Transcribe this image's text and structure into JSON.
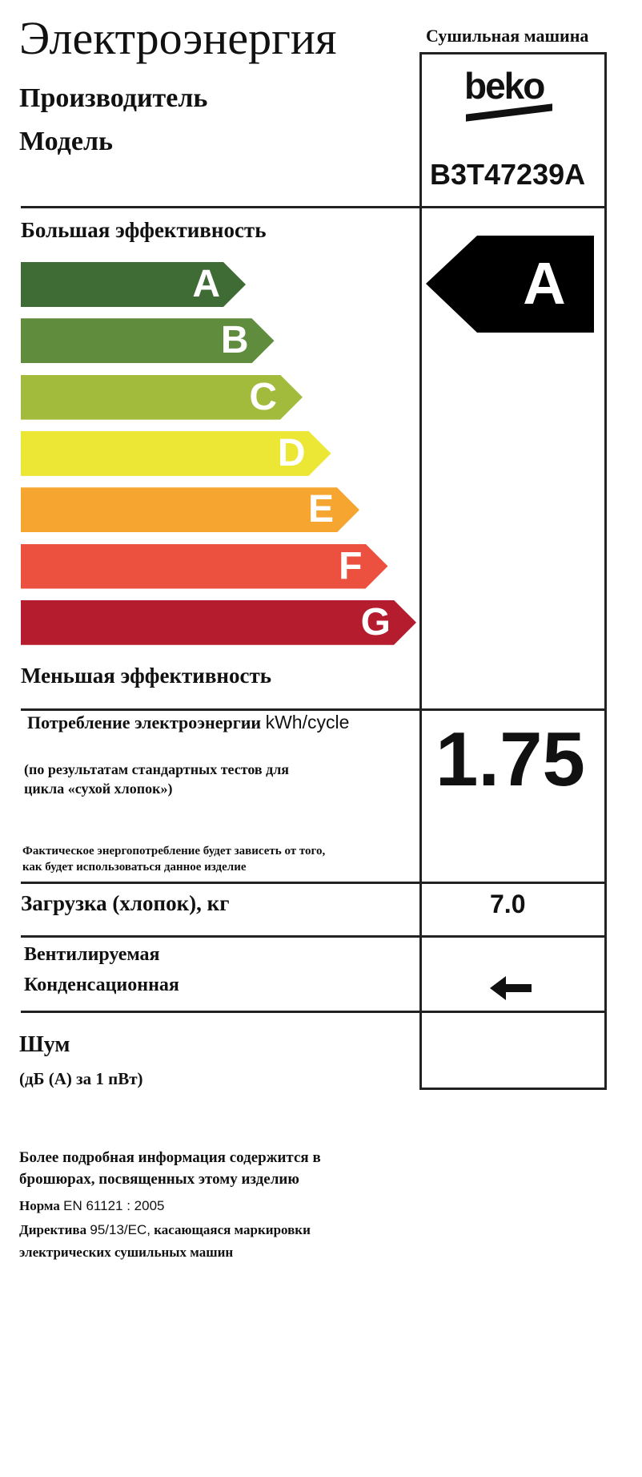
{
  "header": {
    "title": "Электроэнергия",
    "appliance_type": "Сушильная машина",
    "manufacturer_label": "Производитель",
    "model_label": "Модель",
    "manufacturer_logo": "beko",
    "model": "B3T47239A"
  },
  "efficiency": {
    "high_label": "Большая эффективность",
    "low_label": "Меньшая эффективность",
    "classes": [
      {
        "letter": "A",
        "color": "#3f6b34"
      },
      {
        "letter": "B",
        "color": "#5f8c3d"
      },
      {
        "letter": "C",
        "color": "#a2bb3c"
      },
      {
        "letter": "D",
        "color": "#ece734"
      },
      {
        "letter": "E",
        "color": "#f6a531"
      },
      {
        "letter": "F",
        "color": "#ec5140"
      },
      {
        "letter": "G",
        "color": "#b51c2e"
      }
    ],
    "rating": "A"
  },
  "consumption": {
    "label": "Потребление электроэнергии",
    "unit": "kWh/cycle",
    "value": "1.75",
    "note1": "(по результатам стандартных тестов для",
    "note2": "цикла «сухой хлопок»)",
    "note3": "Фактическое энергопотребление будет зависеть от того,",
    "note4": "как будет использоваться данное изделие"
  },
  "load": {
    "label": "Загрузка (хлопок), кг",
    "value": "7.0"
  },
  "type": {
    "vented": "Вентилируемая",
    "condenser": "Конденсационная",
    "selected": "condenser"
  },
  "noise": {
    "label": "Шум",
    "unit": "(дБ (А) за 1 пВт)",
    "value": ""
  },
  "footer": {
    "line1": "Более подробная информация содержится в",
    "line2": "брошюрах, посвященных этому изделию",
    "norm_label": "Норма",
    "norm_value": "EN 61121 : 2005",
    "directive_label": "Директива",
    "directive_value": "95/13/EC,",
    "directive_rest": "касающаяся маркировки",
    "line5": "электрических сушильных машин"
  }
}
